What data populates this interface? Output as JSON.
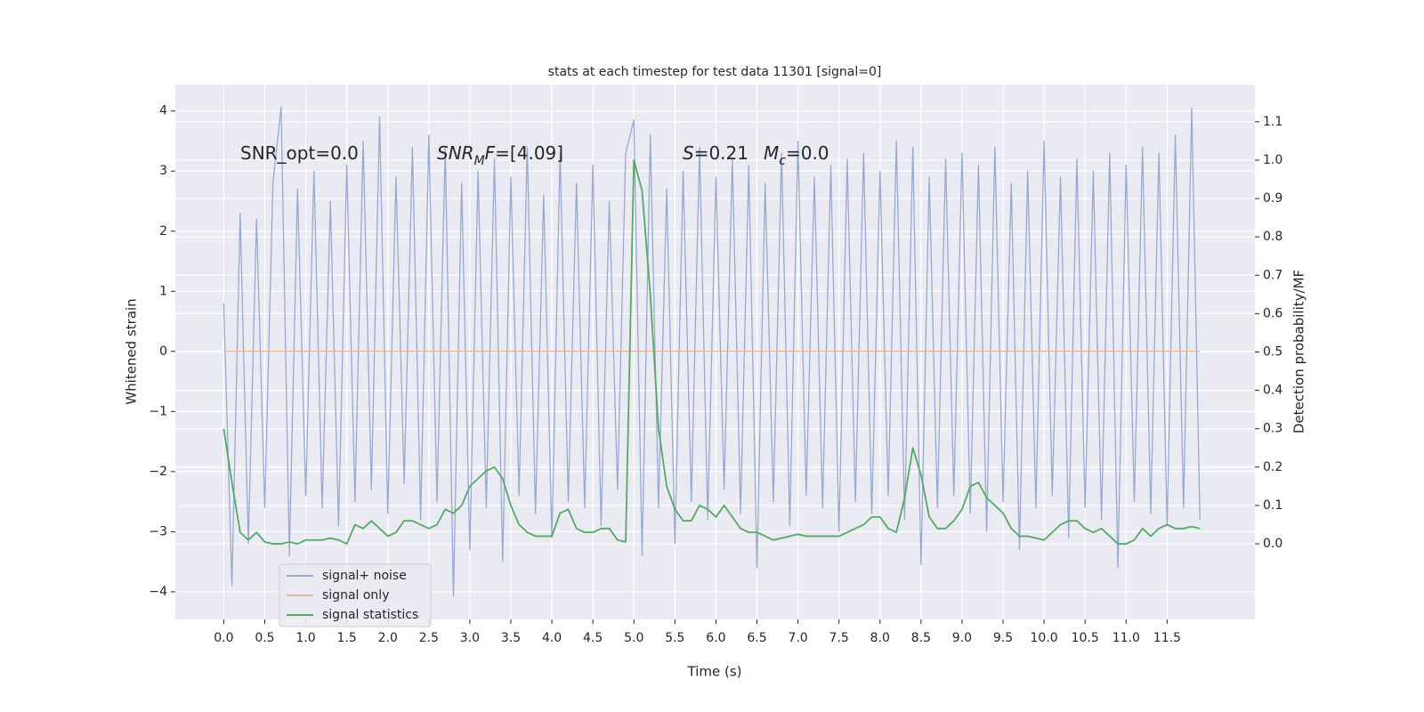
{
  "chart_data": {
    "type": "line",
    "title": "stats at each timestep for test data 11301 [signal=0]",
    "x_label": "Time (s)",
    "y_label": "Whitened strain",
    "y2_label": "Detection probability/MF",
    "x": [
      0.0,
      0.1,
      0.2,
      0.3,
      0.4,
      0.5,
      0.6,
      0.7,
      0.8,
      0.9,
      1.0,
      1.1,
      1.2,
      1.3,
      1.4,
      1.5,
      1.6,
      1.7,
      1.8,
      1.9,
      2.0,
      2.1,
      2.2,
      2.3,
      2.4,
      2.5,
      2.6,
      2.7,
      2.8,
      2.9,
      3.0,
      3.1,
      3.2,
      3.3,
      3.4,
      3.5,
      3.6,
      3.7,
      3.8,
      3.9,
      4.0,
      4.1,
      4.2,
      4.3,
      4.4,
      4.5,
      4.6,
      4.7,
      4.8,
      4.9,
      5.0,
      5.1,
      5.2,
      5.3,
      5.4,
      5.5,
      5.6,
      5.7,
      5.8,
      5.9,
      6.0,
      6.1,
      6.2,
      6.3,
      6.4,
      6.5,
      6.6,
      6.7,
      6.8,
      6.9,
      7.0,
      7.1,
      7.2,
      7.3,
      7.4,
      7.5,
      7.6,
      7.7,
      7.8,
      7.9,
      8.0,
      8.1,
      8.2,
      8.3,
      8.4,
      8.5,
      8.6,
      8.7,
      8.8,
      8.9,
      9.0,
      9.1,
      9.2,
      9.3,
      9.4,
      9.5,
      9.6,
      9.7,
      9.8,
      9.9,
      10.0,
      10.1,
      10.2,
      10.3,
      10.4,
      10.5,
      10.6,
      10.7,
      10.8,
      10.9,
      11.0,
      11.1,
      11.2,
      11.3,
      11.4,
      11.5,
      11.6,
      11.7,
      11.8,
      11.9
    ],
    "series": [
      {
        "name": "signal+ noise",
        "color": "#98a9d0",
        "values": [
          0.8,
          -3.9,
          2.3,
          -3.2,
          2.2,
          -2.6,
          2.8,
          4.07,
          -3.4,
          2.7,
          -2.4,
          3.0,
          -2.6,
          2.5,
          -2.9,
          3.1,
          -2.5,
          3.5,
          -2.3,
          3.9,
          -2.7,
          2.9,
          -2.2,
          3.4,
          -2.8,
          3.6,
          -2.5,
          3.4,
          -4.07,
          2.8,
          -3.3,
          3.0,
          -2.6,
          3.2,
          -3.5,
          2.9,
          -2.4,
          3.4,
          -2.7,
          2.6,
          -3.1,
          3.3,
          -2.5,
          2.8,
          -2.6,
          3.1,
          -2.9,
          2.5,
          -2.3,
          3.3,
          3.85,
          -3.4,
          3.6,
          -2.6,
          2.7,
          -3.2,
          3.0,
          -2.5,
          3.4,
          -2.8,
          2.9,
          -2.3,
          3.2,
          -2.7,
          3.1,
          -3.6,
          2.8,
          -2.5,
          3.3,
          -2.9,
          3.5,
          -2.4,
          2.9,
          -2.6,
          3.1,
          -3.0,
          3.2,
          -2.5,
          3.3,
          -2.7,
          3.0,
          -2.4,
          3.5,
          -2.8,
          3.4,
          -3.55,
          2.9,
          -2.6,
          3.2,
          -2.4,
          3.3,
          -2.7,
          3.1,
          -3.0,
          3.4,
          -2.5,
          2.8,
          -3.3,
          3.0,
          -2.6,
          3.5,
          -2.4,
          2.9,
          -3.1,
          3.2,
          -2.6,
          3.0,
          -2.8,
          3.3,
          -3.6,
          3.1,
          -2.5,
          3.4,
          -2.7,
          3.3,
          -2.9,
          3.6,
          -2.6,
          4.05,
          -2.8
        ]
      },
      {
        "name": "signal only",
        "color": "#e8b49b",
        "values": [
          0,
          0,
          0,
          0,
          0,
          0,
          0,
          0,
          0,
          0,
          0,
          0,
          0,
          0,
          0,
          0,
          0,
          0,
          0,
          0,
          0,
          0,
          0,
          0,
          0,
          0,
          0,
          0,
          0,
          0,
          0,
          0,
          0,
          0,
          0,
          0,
          0,
          0,
          0,
          0,
          0,
          0,
          0,
          0,
          0,
          0,
          0,
          0,
          0,
          0,
          0,
          0,
          0,
          0,
          0,
          0,
          0,
          0,
          0,
          0,
          0,
          0,
          0,
          0,
          0,
          0,
          0,
          0,
          0,
          0,
          0,
          0,
          0,
          0,
          0,
          0,
          0,
          0,
          0,
          0,
          0,
          0,
          0,
          0,
          0,
          0,
          0,
          0,
          0,
          0,
          0,
          0,
          0,
          0,
          0,
          0,
          0,
          0,
          0,
          0,
          0,
          0,
          0,
          0,
          0,
          0,
          0,
          0,
          0,
          0,
          0,
          0,
          0,
          0,
          0,
          0,
          0,
          0,
          0,
          0
        ]
      },
      {
        "name": "signal statistics",
        "color": "#55a868",
        "axis": "y2",
        "values": [
          0.3,
          0.16,
          0.03,
          0.01,
          0.03,
          0.005,
          0.0,
          0.0,
          0.005,
          0.0,
          0.01,
          0.01,
          0.01,
          0.015,
          0.01,
          0.0,
          0.05,
          0.04,
          0.06,
          0.04,
          0.02,
          0.03,
          0.06,
          0.06,
          0.05,
          0.04,
          0.05,
          0.09,
          0.08,
          0.1,
          0.15,
          0.17,
          0.19,
          0.2,
          0.17,
          0.1,
          0.05,
          0.03,
          0.02,
          0.02,
          0.02,
          0.08,
          0.09,
          0.04,
          0.03,
          0.03,
          0.04,
          0.04,
          0.01,
          0.005,
          1.0,
          0.92,
          0.65,
          0.3,
          0.15,
          0.09,
          0.06,
          0.06,
          0.1,
          0.09,
          0.07,
          0.1,
          0.07,
          0.04,
          0.03,
          0.03,
          0.02,
          0.01,
          0.015,
          0.02,
          0.025,
          0.02,
          0.02,
          0.02,
          0.02,
          0.02,
          0.03,
          0.04,
          0.05,
          0.07,
          0.07,
          0.04,
          0.03,
          0.12,
          0.25,
          0.18,
          0.07,
          0.04,
          0.04,
          0.06,
          0.09,
          0.15,
          0.16,
          0.12,
          0.1,
          0.08,
          0.04,
          0.02,
          0.02,
          0.015,
          0.01,
          0.03,
          0.05,
          0.06,
          0.06,
          0.04,
          0.03,
          0.04,
          0.02,
          0.0,
          0.0,
          0.01,
          0.04,
          0.02,
          0.04,
          0.05,
          0.04,
          0.04,
          0.045,
          0.04
        ]
      }
    ],
    "xlim": [
      -0.59,
      12.57
    ],
    "xticks": [
      {
        "value": 0,
        "label": "0.0"
      },
      0.5,
      {
        "value": 1,
        "label": "1.0"
      },
      1.5,
      {
        "value": 2,
        "label": "2.0"
      },
      2.5,
      {
        "value": 3,
        "label": "3.0"
      },
      3.5,
      {
        "value": 4,
        "label": "4.0"
      },
      4.5,
      {
        "value": 5,
        "label": "5.0"
      },
      5.5,
      {
        "value": 6,
        "label": "6.0"
      },
      6.5,
      {
        "value": 7,
        "label": "7.0"
      },
      7.5,
      {
        "value": 8,
        "label": "8.0"
      },
      8.5,
      {
        "value": 9,
        "label": "9.0"
      },
      9.5,
      {
        "value": 10,
        "label": "10.0"
      },
      10.5,
      {
        "value": 11,
        "label": "11.0"
      },
      11.5
    ],
    "ylim": [
      -4.46,
      4.44
    ],
    "yticks": [
      {
        "value": -4,
        "label": "−4"
      },
      {
        "value": -3,
        "label": "−3"
      },
      {
        "value": -2,
        "label": "−2"
      },
      {
        "value": -1,
        "label": "−1"
      },
      0,
      1,
      2,
      3,
      4
    ],
    "y2lim": [
      -0.197,
      1.197
    ],
    "y2ticks": [
      {
        "value": 0,
        "label": "0.0"
      },
      0.1,
      0.2,
      0.3,
      0.4,
      0.5,
      0.6,
      0.7,
      0.8,
      0.9,
      {
        "value": 1,
        "label": "1.0"
      },
      1.1
    ],
    "grid": true,
    "legend": "lower left",
    "annotations": [
      [
        {
          "text": "SNR_opt=0.0"
        }
      ],
      [
        {
          "text": "SNR",
          "italic": true
        },
        {
          "text": "M",
          "italic": true,
          "sub": true
        },
        {
          "text": "F",
          "italic": true
        },
        {
          "text": "=[4.09]"
        }
      ],
      [
        {
          "text": "S",
          "italic": true
        },
        {
          "text": "=0.21"
        }
      ],
      [
        {
          "text": "M",
          "italic": true
        },
        {
          "text": "c",
          "italic": true,
          "sub": true
        },
        {
          "text": "=0.0"
        }
      ]
    ]
  }
}
